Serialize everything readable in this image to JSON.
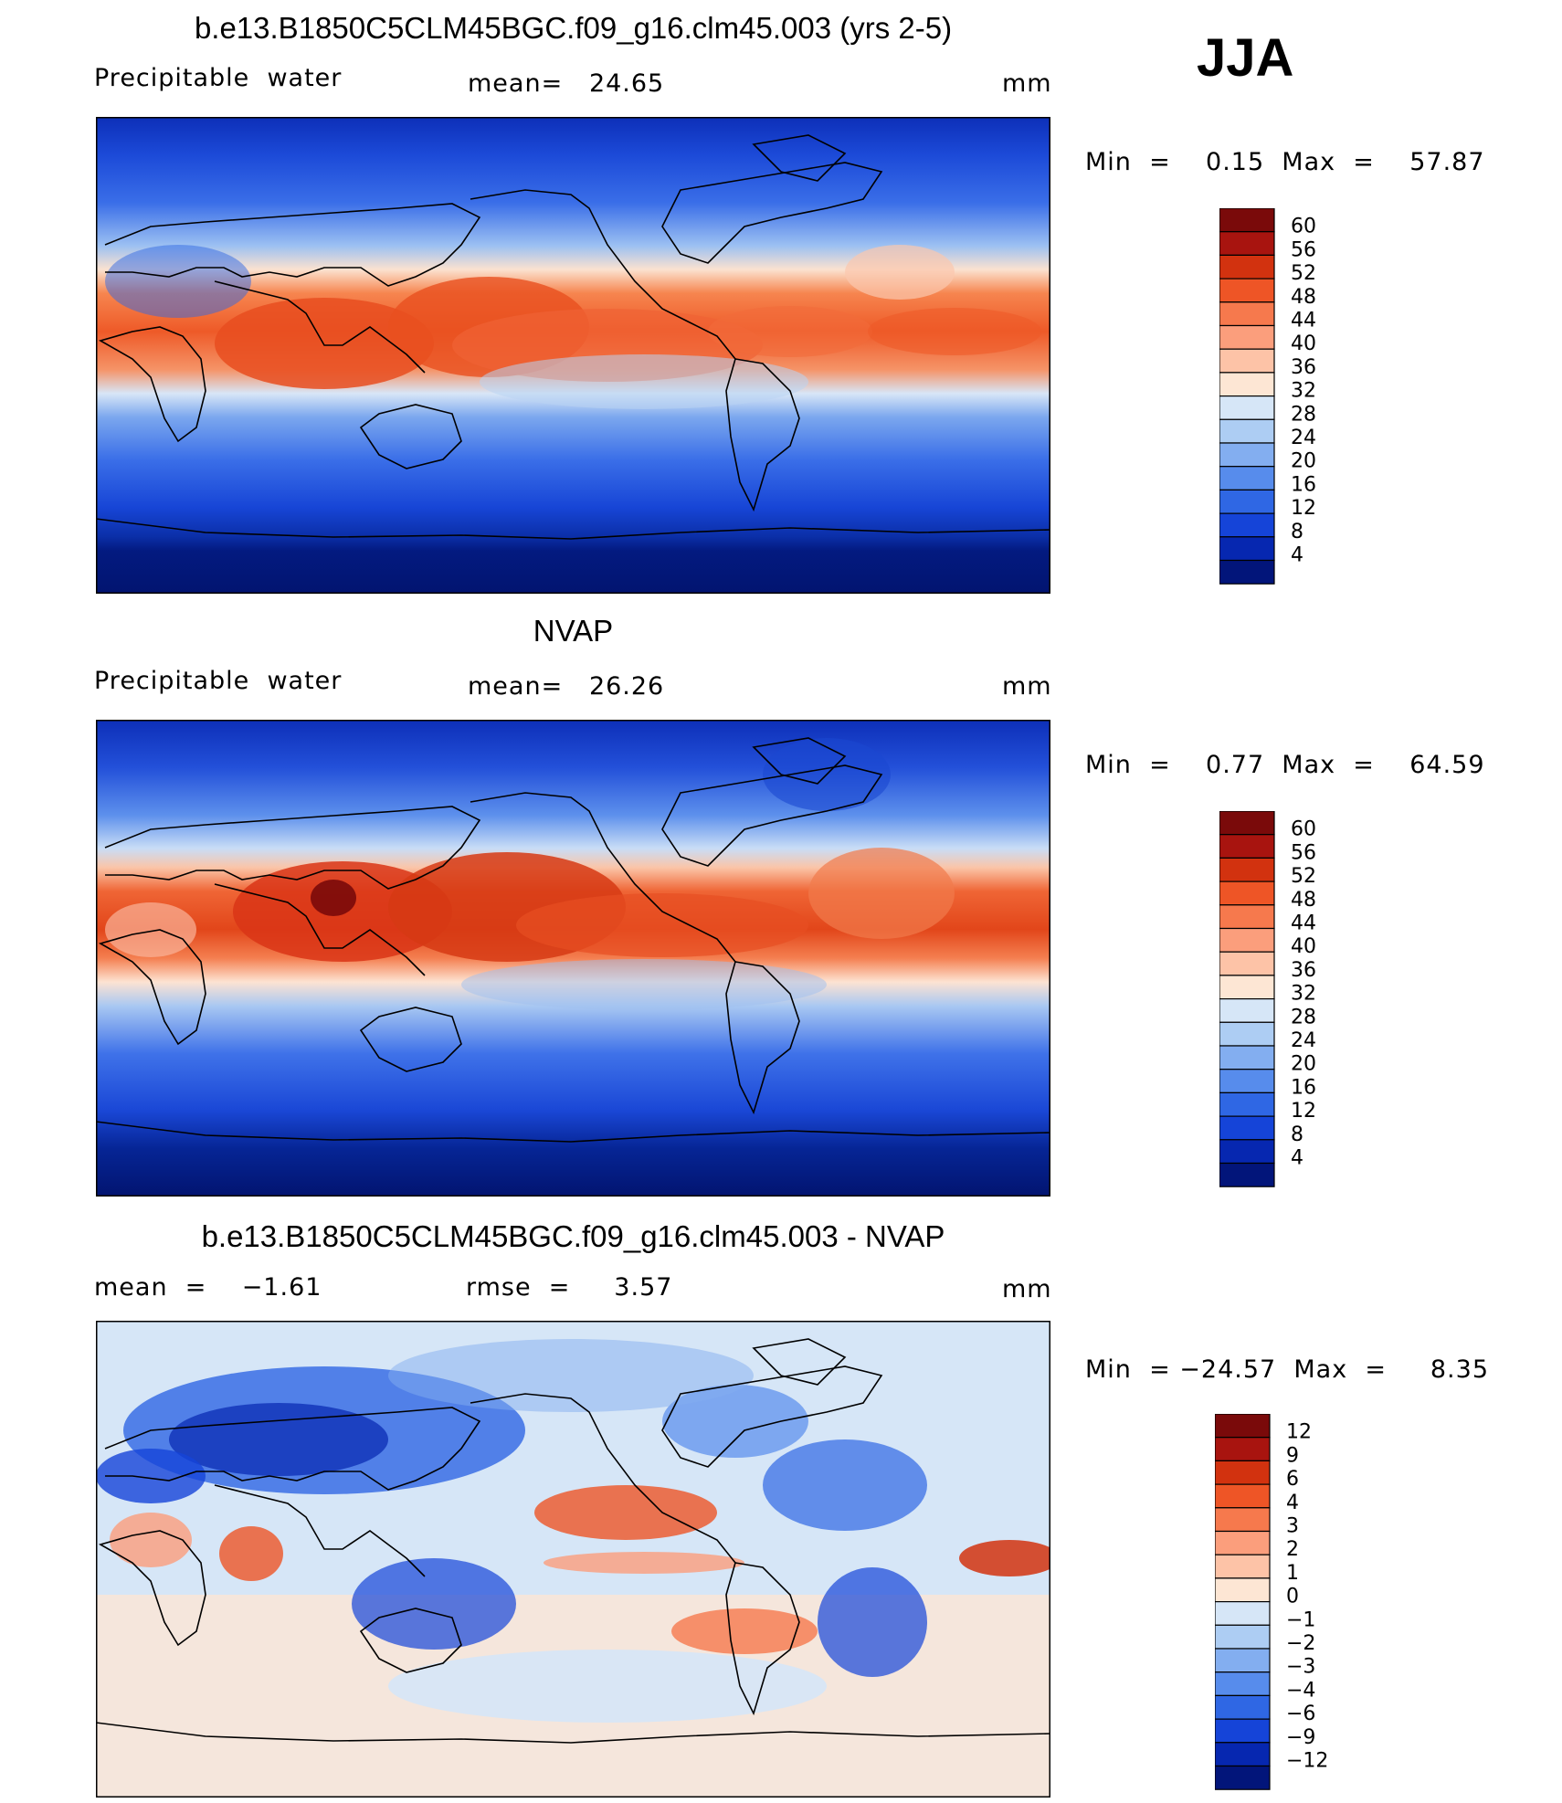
{
  "season": "JJA",
  "panels": [
    {
      "title": "b.e13.B1850C5CLM45BGC.f09_g16.clm45.003 (yrs 2-5)",
      "left_label": "Precipitable  water",
      "mid_label": "mean=   24.65",
      "units": "mm",
      "minmax": "Min  =    0.15  Max  =    57.87",
      "colorbar": {
        "labels": [
          "60",
          "56",
          "52",
          "48",
          "44",
          "40",
          "36",
          "32",
          "28",
          "24",
          "20",
          "16",
          "12",
          "8",
          "4"
        ],
        "colors": [
          "#7a0a0a",
          "#a8140f",
          "#d2320f",
          "#ee5526",
          "#f6794d",
          "#fb9e7c",
          "#fdc3a7",
          "#fde6d4",
          "#d6e6f7",
          "#adcdf3",
          "#83aef0",
          "#578cec",
          "#2f67e4",
          "#1544d8",
          "#0627b0",
          "#02157a"
        ]
      },
      "map_scheme": "pw_model"
    },
    {
      "title": "NVAP",
      "left_label": "Precipitable  water",
      "mid_label": "mean=   26.26",
      "units": "mm",
      "minmax": "Min  =    0.77  Max  =    64.59",
      "colorbar": {
        "labels": [
          "60",
          "56",
          "52",
          "48",
          "44",
          "40",
          "36",
          "32",
          "28",
          "24",
          "20",
          "16",
          "12",
          "8",
          "4"
        ],
        "colors": [
          "#7a0a0a",
          "#a8140f",
          "#d2320f",
          "#ee5526",
          "#f6794d",
          "#fb9e7c",
          "#fdc3a7",
          "#fde6d4",
          "#d6e6f7",
          "#adcdf3",
          "#83aef0",
          "#578cec",
          "#2f67e4",
          "#1544d8",
          "#0627b0",
          "#02157a"
        ]
      },
      "map_scheme": "pw_obs"
    },
    {
      "title": "b.e13.B1850C5CLM45BGC.f09_g16.clm45.003 - NVAP",
      "left_label": "mean  =    −1.61",
      "mid_label": "rmse  =     3.57",
      "units": "mm",
      "minmax": "Min  = −24.57  Max  =     8.35",
      "colorbar": {
        "labels": [
          "12",
          "9",
          "6",
          "4",
          "3",
          "2",
          "1",
          "0",
          "−1",
          "−2",
          "−3",
          "−4",
          "−6",
          "−9",
          "−12"
        ],
        "colors": [
          "#7a0a0a",
          "#a8140f",
          "#d2320f",
          "#ee5526",
          "#f6794d",
          "#fb9e7c",
          "#fdc3a7",
          "#fde6d4",
          "#d6e6f7",
          "#adcdf3",
          "#83aef0",
          "#578cec",
          "#2f67e4",
          "#1544d8",
          "#0627b0",
          "#02157a"
        ]
      },
      "map_scheme": "diff"
    }
  ]
}
